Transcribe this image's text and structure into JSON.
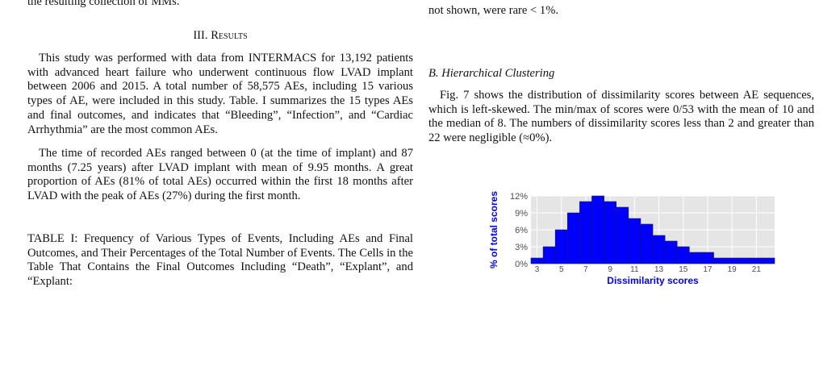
{
  "left_column": {
    "top_line": "the resulting collection of MMs.",
    "section_heading": "III. Results",
    "paragraphs": [
      "This study was performed with data from INTERMACS for 13,192 patients with advanced heart failure who underwent continuous flow LVAD implant between 2006 and 2015. A total number of 58,575 AEs, including 15 various types of AE, were included in this study. Table. I summarizes the 15 types AEs and final outcomes, and indicates that “Bleeding”, “Infection”, and “Cardiac Arrhythmia” are the most common AEs.",
      "The time of recorded AEs ranged between 0 (at the time of implant) and 87 months (7.25 years) after LVAD implant with mean of 9.95 months. A great proportion of AEs (81% of total AEs) occurred within the first 18 months after LVAD with the peak of AEs (27%) during the first month."
    ],
    "table_caption": "TABLE I: Frequency of Various Types of Events, Including AEs and Final Outcomes, and Their Percentages of the Total Number of Events. The Cells in the Table That Contains the Final Outcomes Including “Death”, “Explant”, and “Explant:"
  },
  "right_column": {
    "top_line": "not shown, were rare < 1%.",
    "subsection_heading": "B. Hierarchical Clustering",
    "paragraph": "Fig. 7 shows the distribution of dissimilarity scores between AE sequences, which is left-skewed. The min/max of scores were 0/53 with the mean of 10 and the median of 8. The numbers of dissimilarity scores less than 2 and greater than 22 were negligible (≈0%)."
  },
  "chart_data": {
    "type": "histogram",
    "x_label": "Dissimilarity scores",
    "y_label": "% of total scores",
    "bins": [
      2.5,
      3.5,
      4.5,
      5.5,
      6.5,
      7.5,
      8.5,
      9.5,
      10.5,
      11.5,
      12.5,
      13.5,
      14.5,
      15.5,
      16.5,
      17.5,
      18.5,
      19.5,
      20.5,
      21.5,
      22.5
    ],
    "values": [
      1,
      3,
      6,
      9,
      11,
      12,
      11,
      10,
      8,
      7,
      5,
      4,
      3,
      2,
      2,
      1,
      1,
      1,
      1,
      1
    ],
    "color": "#0000ff",
    "xlim": [
      2.5,
      22.5
    ],
    "xticks": [
      3,
      5,
      7,
      9,
      11,
      13,
      15,
      17,
      19,
      21
    ],
    "ylim": [
      0,
      12
    ],
    "yticks": [
      {
        "value": 0,
        "label": "0%"
      },
      {
        "value": 3,
        "label": "3%"
      },
      {
        "value": 6,
        "label": "6%"
      },
      {
        "value": 9,
        "label": "9%"
      },
      {
        "value": 12,
        "label": "12%"
      }
    ],
    "grid": true
  }
}
